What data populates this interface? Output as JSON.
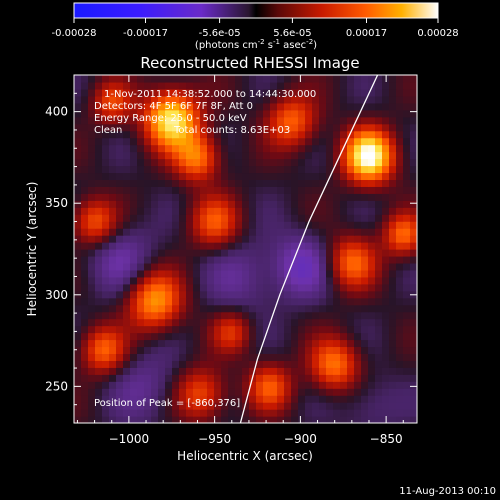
{
  "colorbar": {
    "ticks": [
      "-0.00028",
      "-0.00017",
      "-5.6e-05",
      "5.6e-05",
      "0.00017",
      "0.00028"
    ],
    "unit_parts": {
      "a": "(photons cm",
      "a_sup": "-2",
      "b": " s",
      "b_sup": "-1",
      "c": " asec",
      "c_sup": "-2",
      "d": ")"
    },
    "range": [
      -0.00028,
      0.00028
    ]
  },
  "chart_data": {
    "type": "heatmap",
    "title": "Reconstructed RHESSI Image",
    "xlabel": "Heliocentric X (arcsec)",
    "ylabel": "Heliocentric Y (arcsec)",
    "xlim": [
      -1032,
      -832
    ],
    "ylim": [
      230,
      420
    ],
    "x_ticks": [
      -1000,
      -950,
      -900,
      -850
    ],
    "y_ticks": [
      250,
      300,
      350,
      400
    ],
    "x_tick_labels": [
      "−1000",
      "−950",
      "−900",
      "−850"
    ],
    "y_tick_labels": [
      "250",
      "300",
      "350",
      "400"
    ],
    "annotations": {
      "time": "1-Nov-2011 14:38:52.000 to 14:44:30.000",
      "detectors": "Detectors: 4F 5F 6F 7F 8F, Att 0",
      "energy": "Energy Range: 25.0 - 50.0 keV",
      "clean": "Clean",
      "counts": "Total counts: 8.63E+03",
      "peak": "Position of Peak = [-860,376]"
    },
    "peak": {
      "x": -860,
      "y": 376
    },
    "limb_curve": [
      [
        -935,
        230
      ],
      [
        -925,
        265
      ],
      [
        -912,
        300
      ],
      [
        -895,
        340
      ],
      [
        -875,
        380
      ],
      [
        -855,
        420
      ]
    ],
    "sources": [
      {
        "x": -860,
        "y": 376,
        "amp": 1.0,
        "s": 10
      },
      {
        "x": -975,
        "y": 396,
        "amp": 0.9,
        "s": 11
      },
      {
        "x": -985,
        "y": 297,
        "amp": 0.65,
        "s": 11
      },
      {
        "x": -960,
        "y": 375,
        "amp": 0.55,
        "s": 9
      },
      {
        "x": -1020,
        "y": 340,
        "amp": 0.5,
        "s": 9
      },
      {
        "x": -950,
        "y": 340,
        "amp": 0.45,
        "s": 10
      },
      {
        "x": -1015,
        "y": 270,
        "amp": 0.5,
        "s": 9
      },
      {
        "x": -880,
        "y": 262,
        "amp": 0.55,
        "s": 10
      },
      {
        "x": -918,
        "y": 250,
        "amp": 0.45,
        "s": 9
      },
      {
        "x": -958,
        "y": 246,
        "amp": 0.45,
        "s": 10
      },
      {
        "x": -905,
        "y": 395,
        "amp": 0.5,
        "s": 10
      },
      {
        "x": -870,
        "y": 318,
        "amp": 0.5,
        "s": 10
      },
      {
        "x": -840,
        "y": 333,
        "amp": 0.5,
        "s": 8
      },
      {
        "x": -1010,
        "y": 405,
        "amp": 0.4,
        "s": 8
      },
      {
        "x": -940,
        "y": 280,
        "amp": 0.35,
        "s": 8
      },
      {
        "x": -900,
        "y": 316,
        "amp": -0.35,
        "s": 12
      },
      {
        "x": -1005,
        "y": 320,
        "amp": -0.25,
        "s": 14
      },
      {
        "x": -935,
        "y": 310,
        "amp": -0.2,
        "s": 14
      },
      {
        "x": -990,
        "y": 250,
        "amp": -0.2,
        "s": 14
      },
      {
        "x": -860,
        "y": 240,
        "amp": -0.15,
        "s": 12
      }
    ]
  },
  "footer": {
    "timestamp": "11-Aug-2013 00:10"
  }
}
